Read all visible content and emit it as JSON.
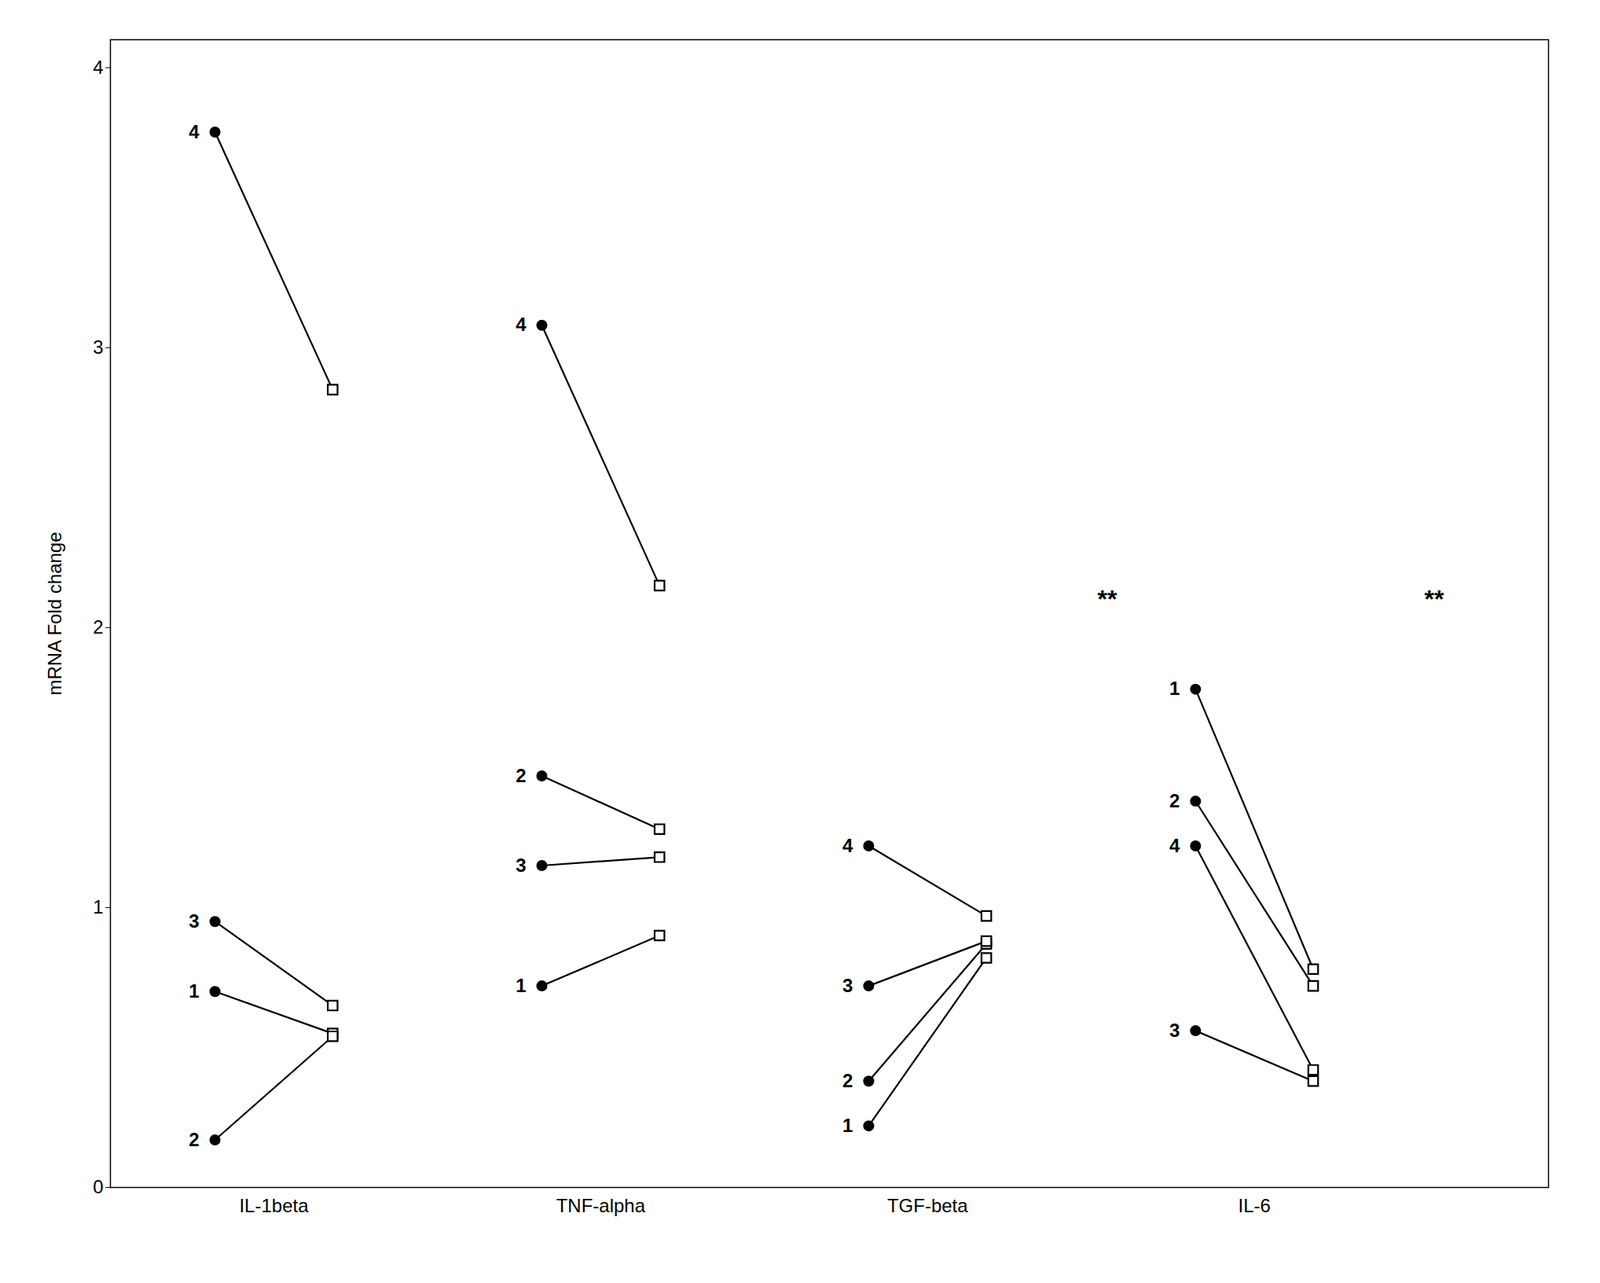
{
  "chart_data": {
    "type": "paired",
    "ylabel": "mRNA Fold change",
    "categories": [
      "IL-1beta",
      "TNF-alpha",
      "TGF-beta",
      "IL-6"
    ],
    "groups": [
      {
        "name": "IL-1beta",
        "subjects": [
          {
            "id": "1",
            "left": 0.7,
            "right": 0.55
          },
          {
            "id": "2",
            "left": 0.17,
            "right": 0.54
          },
          {
            "id": "3",
            "left": 0.95,
            "right": 0.65
          },
          {
            "id": "4",
            "left": 3.77,
            "right": 2.85
          }
        ]
      },
      {
        "name": "TNF-alpha",
        "subjects": [
          {
            "id": "1",
            "left": 0.72,
            "right": 0.9
          },
          {
            "id": "2",
            "left": 1.47,
            "right": 1.28
          },
          {
            "id": "3",
            "left": 1.15,
            "right": 1.18
          },
          {
            "id": "4",
            "left": 3.08,
            "right": 2.15
          }
        ]
      },
      {
        "name": "TGF-beta",
        "subjects": [
          {
            "id": "1",
            "left": 0.22,
            "right": 0.82
          },
          {
            "id": "2",
            "left": 0.38,
            "right": 0.87
          },
          {
            "id": "3",
            "left": 0.72,
            "right": 0.88
          },
          {
            "id": "4",
            "left": 1.22,
            "right": 0.97
          }
        ]
      },
      {
        "name": "IL-6",
        "subjects": [
          {
            "id": "1",
            "left": 1.78,
            "right": 0.78
          },
          {
            "id": "2",
            "left": 1.38,
            "right": 0.72
          },
          {
            "id": "3",
            "left": 0.56,
            "right": 0.38
          },
          {
            "id": "4",
            "left": 1.22,
            "right": 0.42
          }
        ]
      }
    ],
    "annotations": [
      {
        "category": "TGF-beta",
        "text": "**",
        "y": 2.1
      },
      {
        "category": "IL-6",
        "text": "**",
        "y": 2.1
      }
    ],
    "ylim": [
      0,
      4.1
    ],
    "yticks": [
      0,
      1,
      2,
      3,
      4
    ],
    "grid": false
  }
}
